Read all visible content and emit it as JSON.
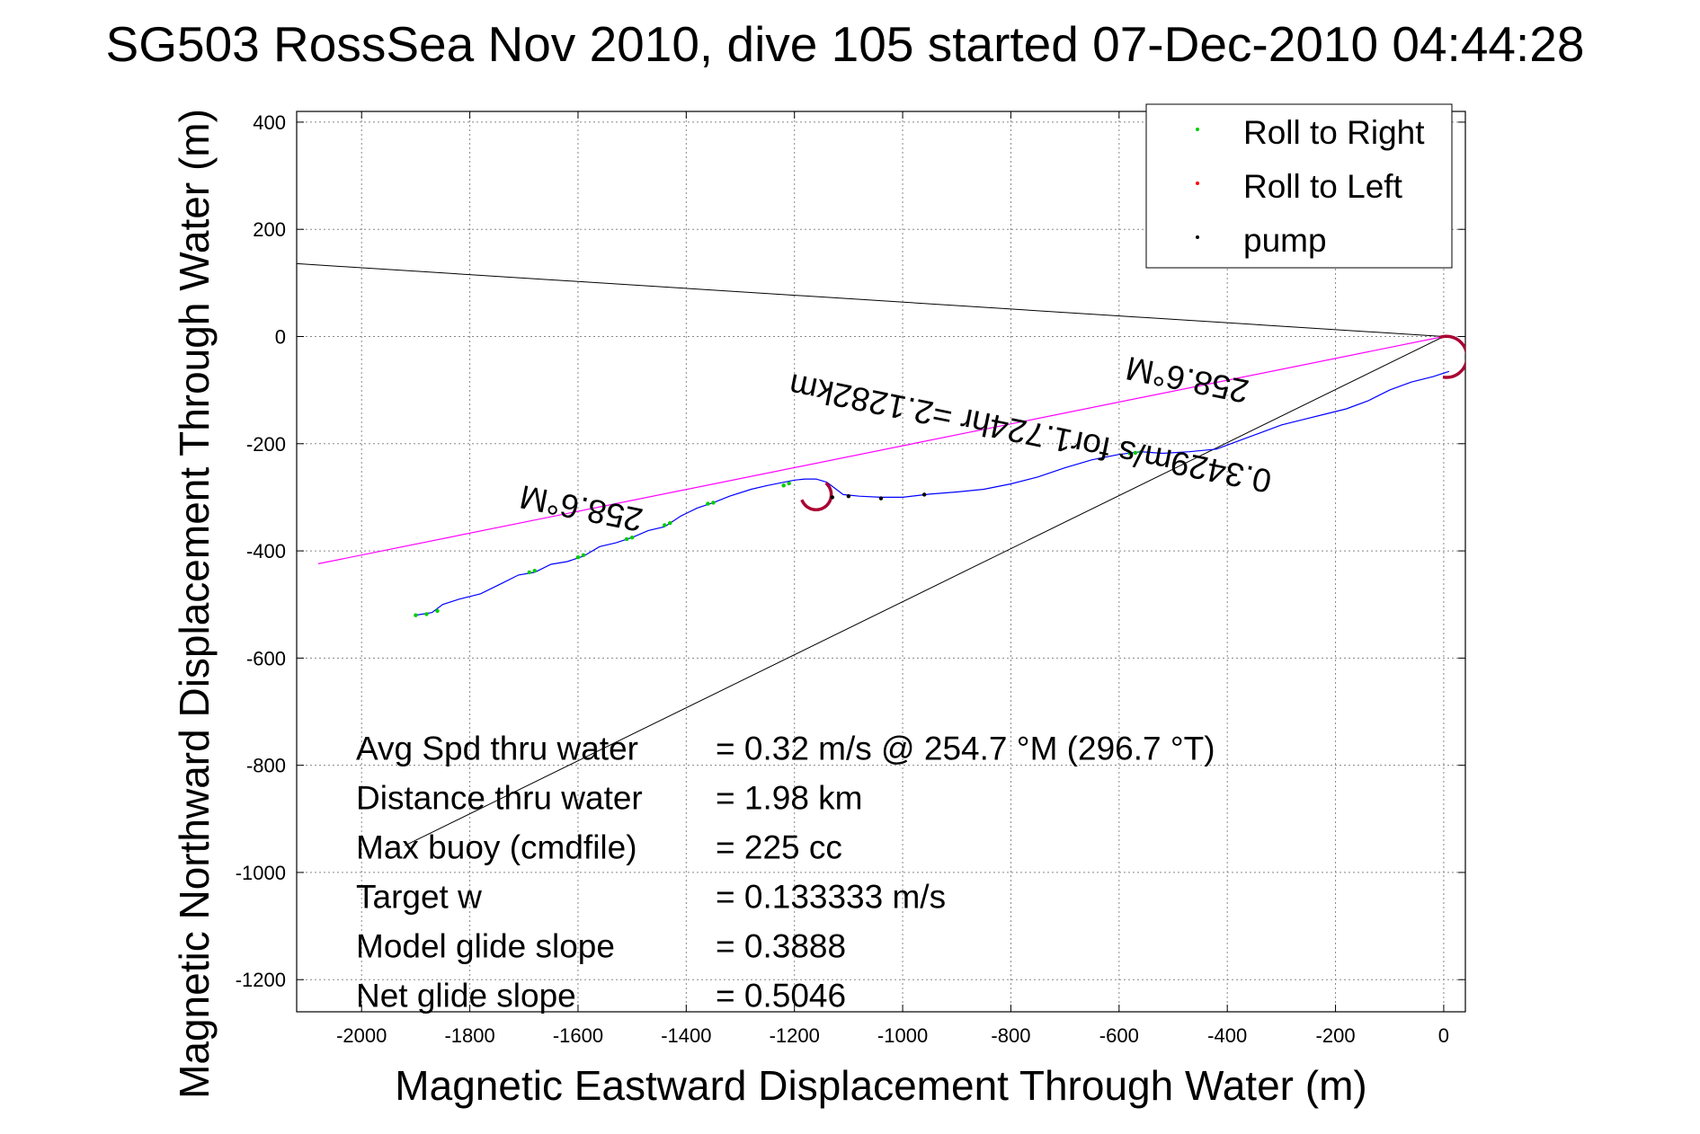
{
  "chart_data": {
    "type": "line",
    "title": "SG503 RossSea Nov 2010, dive 105 started 07-Dec-2010 04:44:28",
    "xlabel": "Magnetic Eastward Displacement Through Water (m)",
    "ylabel": "Magnetic Northward Displacement Through Water (m)",
    "xlim": [
      -2120,
      40
    ],
    "ylim": [
      -1260,
      420
    ],
    "xticks": [
      -2000,
      -1800,
      -1600,
      -1400,
      -1200,
      -1000,
      -800,
      -600,
      -400,
      -200,
      0
    ],
    "yticks": [
      400,
      200,
      0,
      -200,
      -400,
      -600,
      -800,
      -1000,
      -1200
    ],
    "grid": true,
    "legend_position": "top-right",
    "legend": [
      {
        "label": "Roll to Right",
        "color": "#00cc00"
      },
      {
        "label": "Roll to Left",
        "color": "#ff0000"
      },
      {
        "label": "pump",
        "color": "#000000"
      }
    ],
    "colors": {
      "track": "#0000ff",
      "heading_line": "#ff00ff",
      "guide_lines": "#000000",
      "circle": "#aa0033"
    },
    "track": {
      "x": [
        -1900,
        -1870,
        -1850,
        -1820,
        -1780,
        -1740,
        -1710,
        -1680,
        -1650,
        -1620,
        -1590,
        -1560,
        -1530,
        -1500,
        -1470,
        -1440,
        -1410,
        -1380,
        -1350,
        -1320,
        -1280,
        -1250,
        -1220,
        -1200,
        -1180,
        -1160,
        -1140,
        -1110,
        -1080,
        -1040,
        -1000,
        -950,
        -900,
        -850,
        -800,
        -750,
        -700,
        -650,
        -600,
        -560,
        -520,
        -470,
        -420,
        -380,
        -340,
        -300,
        -260,
        -220,
        -180,
        -140,
        -100,
        -60,
        -20,
        10
      ],
      "y": [
        -520,
        -515,
        -500,
        -490,
        -480,
        -460,
        -445,
        -440,
        -425,
        -420,
        -410,
        -392,
        -385,
        -375,
        -362,
        -355,
        -335,
        -320,
        -310,
        -298,
        -285,
        -278,
        -272,
        -268,
        -266,
        -266,
        -272,
        -295,
        -298,
        -300,
        -300,
        -294,
        -290,
        -285,
        -275,
        -262,
        -245,
        -230,
        -220,
        -215,
        -218,
        -215,
        -210,
        -195,
        -180,
        -165,
        -155,
        -145,
        -135,
        -120,
        -100,
        -85,
        -75,
        -65
      ]
    },
    "roll_right": {
      "x": [
        -1900,
        -1880,
        -1860,
        -1690,
        -1680,
        -1600,
        -1590,
        -1510,
        -1500,
        -1440,
        -1430,
        -1360,
        -1350,
        -1220,
        -1210,
        -580,
        -570,
        -560
      ],
      "y": [
        -520,
        -518,
        -512,
        -440,
        -437,
        -412,
        -408,
        -378,
        -375,
        -352,
        -348,
        -312,
        -310,
        -278,
        -274,
        -218,
        -217,
        -216
      ]
    },
    "pump": {
      "x": [
        -1130,
        -1100,
        -1040,
        -960
      ],
      "y": [
        -300,
        -298,
        -302,
        -295
      ]
    },
    "circles": [
      {
        "cx": -1160,
        "cy": -295,
        "r": 28,
        "theta_start": 200,
        "theta_end": 410
      },
      {
        "cx": 5,
        "cy": -38,
        "r": 38,
        "theta_start": -100,
        "theta_end": 110
      }
    ],
    "heading_line": {
      "x": [
        -2080,
        0
      ],
      "y": [
        -424,
        0
      ]
    },
    "guide_lines": [
      {
        "x": [
          -2120,
          0
        ],
        "y": [
          136,
          0
        ]
      },
      {
        "x": [
          -1920,
          0
        ],
        "y": [
          -950,
          0
        ]
      }
    ],
    "annotations": [
      {
        "text": "258.6°M",
        "x": -1590,
        "y": -300,
        "angle_deg": -168.6
      },
      {
        "text": "0.3429m/s for1.724hr =2.1282km",
        "x": -760,
        "y": -160,
        "angle_deg": -168.6
      },
      {
        "text": "258.6°M",
        "x": -470,
        "y": -60,
        "angle_deg": -168.6
      }
    ],
    "stats": [
      {
        "label": "Avg Spd thru water",
        "value": "=  0.32 m/s @ 254.7 °M (296.7 °T)"
      },
      {
        "label": "Distance thru water",
        "value": "=  1.98 km"
      },
      {
        "label": "Max buoy (cmdfile)",
        "value": "= 225 cc"
      },
      {
        "label": "Target w",
        "value": "= 0.133333 m/s"
      },
      {
        "label": "Model glide slope",
        "value": "= 0.3888"
      },
      {
        "label": "Net glide slope",
        "value": "= 0.5046"
      }
    ]
  }
}
